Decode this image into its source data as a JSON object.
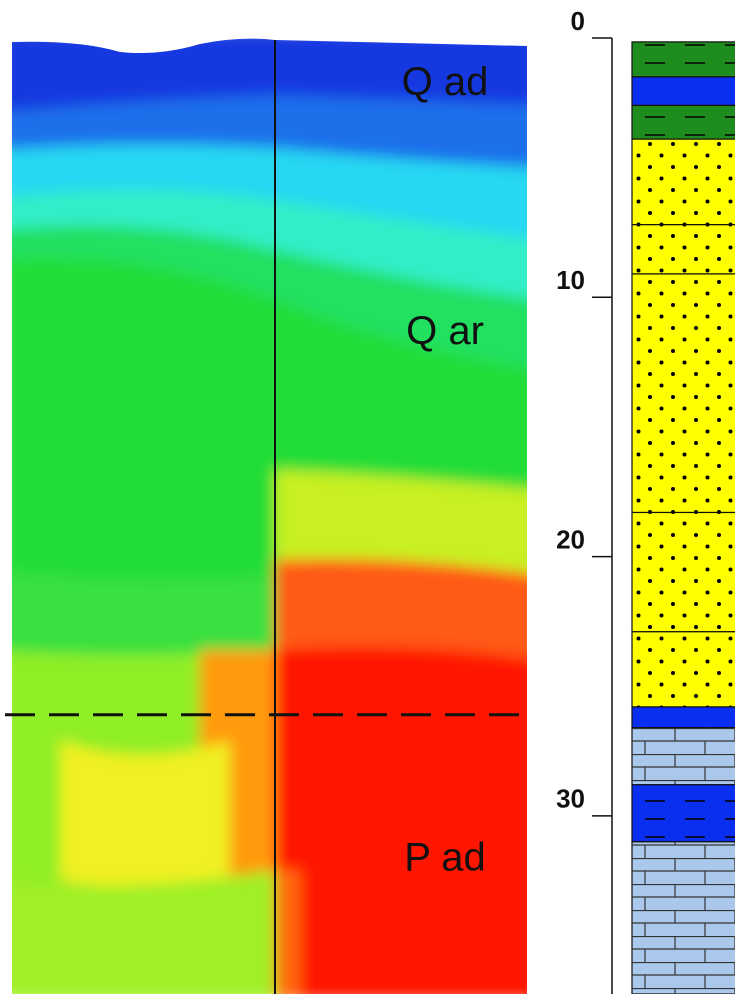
{
  "chart_data": {
    "type": "section",
    "labels": [
      {
        "text": "Q ad",
        "depth": 1.8
      },
      {
        "text": "Q ar",
        "depth": 11.4
      },
      {
        "text": "P ad",
        "depth": 31.7
      }
    ],
    "ylim": [
      0,
      36.87
    ],
    "yticks": [
      0,
      10,
      20,
      30
    ],
    "boundary_depth": 26.1,
    "layers": [
      {
        "top": 0.15,
        "bottom": 1.5,
        "color": "#1e8c1e",
        "pattern": "dash"
      },
      {
        "top": 1.5,
        "bottom": 2.6,
        "color": "#0a2ff0",
        "pattern": "none"
      },
      {
        "top": 2.6,
        "bottom": 3.9,
        "color": "#1e8c1e",
        "pattern": "dash"
      },
      {
        "top": 3.9,
        "bottom": 7.2,
        "color": "#ffff00",
        "pattern": "dots"
      },
      {
        "top": 7.2,
        "bottom": 9.1,
        "color": "#ffff00",
        "pattern": "dots"
      },
      {
        "top": 9.1,
        "bottom": 18.3,
        "color": "#ffff00",
        "pattern": "dots"
      },
      {
        "top": 18.3,
        "bottom": 22.9,
        "color": "#ffff00",
        "pattern": "dots"
      },
      {
        "top": 22.9,
        "bottom": 25.8,
        "color": "#ffff00",
        "pattern": "dots"
      },
      {
        "top": 25.8,
        "bottom": 26.6,
        "color": "#0a2ff0",
        "pattern": "none"
      },
      {
        "top": 26.6,
        "bottom": 28.8,
        "color": "#a9c8ec",
        "pattern": "brick"
      },
      {
        "top": 28.8,
        "bottom": 31.0,
        "color": "#0a2ff0",
        "pattern": "dash"
      },
      {
        "top": 31.0,
        "bottom": 36.87,
        "color": "#a9c8ec",
        "pattern": "brick"
      }
    ]
  }
}
